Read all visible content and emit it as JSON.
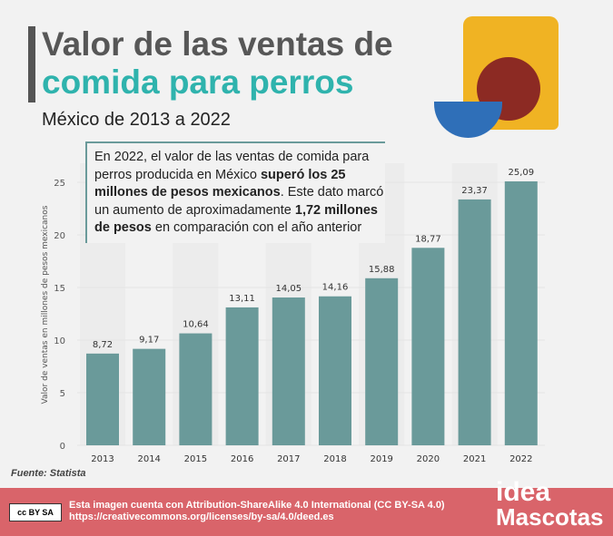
{
  "header": {
    "title_line1": "Valor de las ventas de",
    "title_line2": "comida para perros",
    "subtitle": "México de 2013 a 2022"
  },
  "note": {
    "p1": "En 2022, el valor de las ventas de comida para perros producida en México ",
    "b1": "superó los 25 millones de pesos mexicanos",
    "p2": ". Este dato marcó un aumento de aproximadamente ",
    "b2": "1,72 millones de pesos",
    "p3": " en comparación con el año anterior"
  },
  "source": "Fuente: Statista",
  "footer": {
    "license_line1": "Esta imagen cuenta con Attribution-ShareAlike 4.0 International (CC BY-SA 4.0)",
    "license_line2": "https://creativecommons.org/licenses/by-sa/4.0/deed.es",
    "cc_badge": "cc BY SA",
    "logo_line1": "idea",
    "logo_line2": "Mascotas"
  },
  "colors": {
    "bar": "#6a9a9a",
    "footer": "#d9646a",
    "accent": "#2fb3ad"
  },
  "chart_data": {
    "type": "bar",
    "categories": [
      "2013",
      "2014",
      "2015",
      "2016",
      "2017",
      "2018",
      "2019",
      "2020",
      "2021",
      "2022"
    ],
    "values": [
      8.72,
      9.17,
      10.64,
      13.11,
      14.05,
      14.16,
      15.88,
      18.77,
      23.37,
      25.09
    ],
    "labels": [
      "8,72",
      "9,17",
      "10,64",
      "13,11",
      "14,05",
      "14,16",
      "15,88",
      "18,77",
      "23,37",
      "25,09"
    ],
    "ylabel": "Valor de ventas en millones de pesos mexicanos",
    "yticks": [
      0,
      5,
      10,
      15,
      20,
      25
    ],
    "ylim": [
      0,
      25
    ]
  }
}
